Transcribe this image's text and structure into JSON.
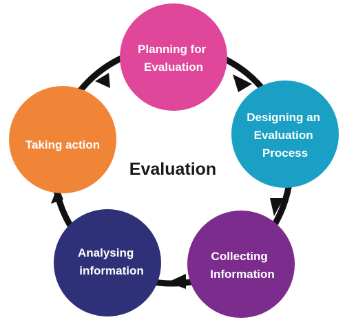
{
  "center": {
    "label": "Evaluation"
  },
  "nodes": [
    {
      "id": "planning",
      "lines": [
        "Planning for",
        "Evaluation"
      ],
      "color": "#e0479a"
    },
    {
      "id": "designing",
      "lines": [
        "Designing an",
        "Evaluation",
        "Process"
      ],
      "color": "#1aa0c4"
    },
    {
      "id": "collecting",
      "lines": [
        "Collecting",
        "Information"
      ],
      "color": "#7b2c8c"
    },
    {
      "id": "analysing",
      "lines": [
        "Analysing",
        "information"
      ],
      "color": "#2e3178"
    },
    {
      "id": "taking",
      "lines": [
        "Taking action"
      ],
      "color": "#f08437"
    }
  ],
  "cycle_color": "#111111"
}
